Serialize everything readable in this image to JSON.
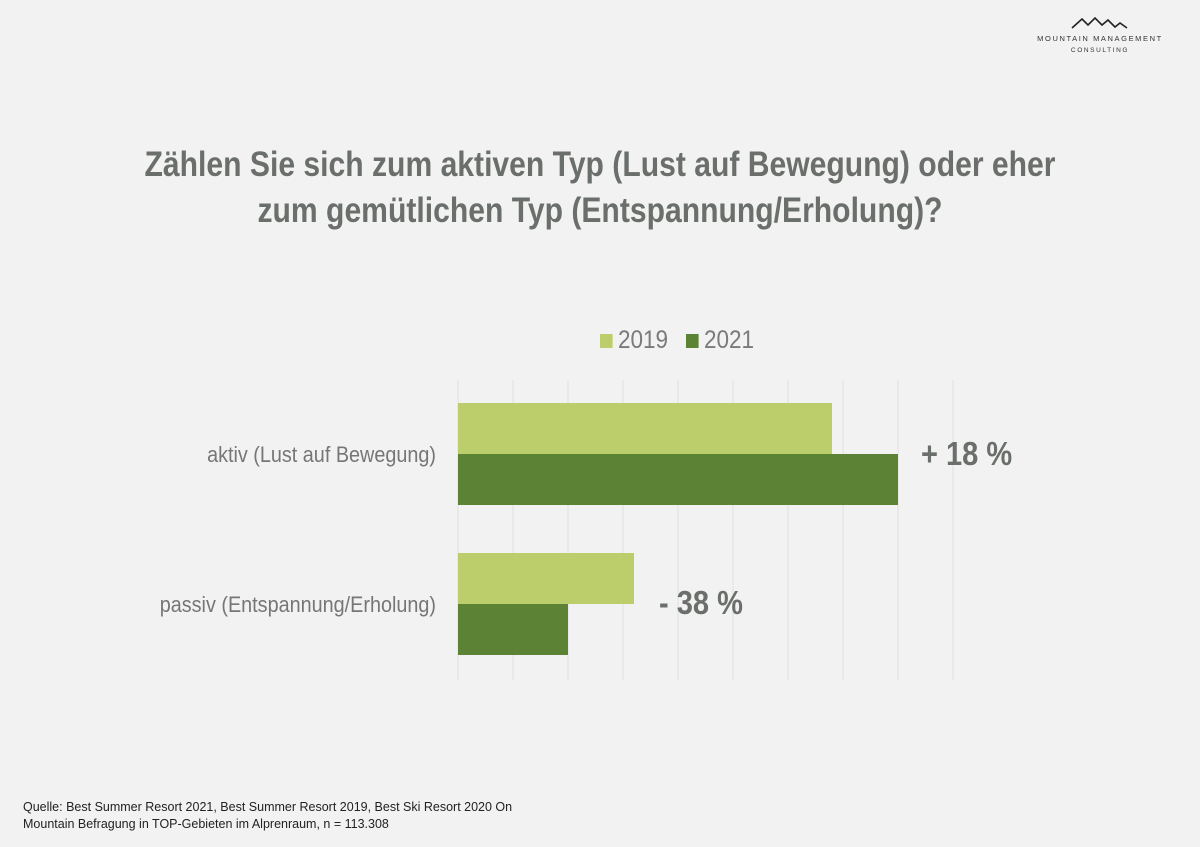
{
  "logo": {
    "line1": "MOUNTAIN MANAGEMENT",
    "line2": "CONSULTING",
    "icon": "mountain-peaks-icon"
  },
  "title": {
    "line1": "Zählen Sie sich zum aktiven Typ (Lust auf Bewegung) oder eher",
    "line2": "zum gemütlichen Typ (Entspannung/Erholung)?"
  },
  "colors": {
    "series_2019": "#bccd6b",
    "series_2021": "#5b8235",
    "gridline": "#e0e0e0"
  },
  "chart_data": {
    "type": "bar",
    "orientation": "horizontal",
    "title": "Zählen Sie sich zum aktiven Typ (Lust auf Bewegung) oder eher zum gemütlichen Typ (Entspannung/Erholung)?",
    "categories": [
      "aktiv (Lust auf Bewegung)",
      "passiv (Entspannung/Erholung)"
    ],
    "series": [
      {
        "name": "2019",
        "values": [
          68,
          32
        ]
      },
      {
        "name": "2021",
        "values": [
          80,
          20
        ]
      }
    ],
    "xlim": [
      0,
      100
    ],
    "grid": true,
    "grid_step": 10,
    "tick_labels_shown": false,
    "legend": "top",
    "annotations": [
      "+ 18 %",
      "- 38 %"
    ],
    "xlabel": "",
    "ylabel": ""
  },
  "source": {
    "line1": "Quelle: Best Summer Resort 2021, Best Summer Resort 2019, Best Ski Resort 2020 On",
    "line2": "Mountain Befragung in TOP-Gebieten im Alprenraum, n = 113.308"
  }
}
